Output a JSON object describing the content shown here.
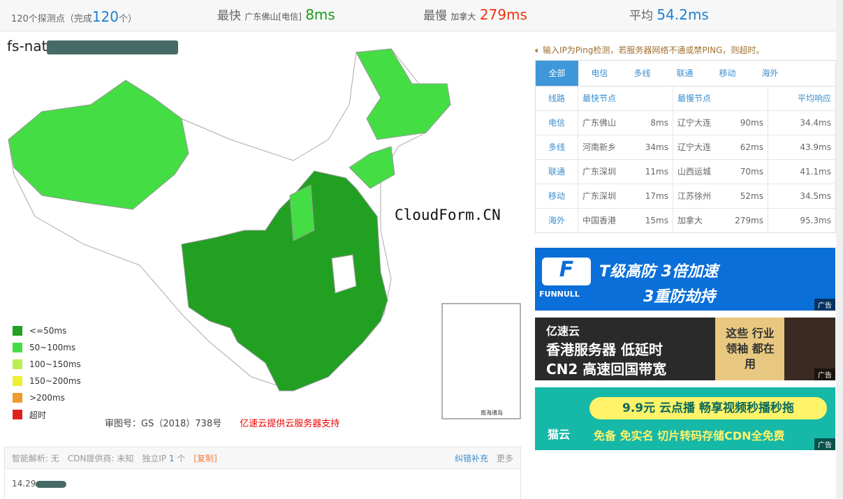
{
  "summary": {
    "probes_prefix": "120个探测点（完成",
    "probes_done": "120",
    "probes_suffix": "个）",
    "fastest_label": "最快",
    "fastest_loc": "广东佛山[电信]",
    "fastest_val": "8ms",
    "slowest_label": "最慢",
    "slowest_loc": "加拿大",
    "slowest_val": "279ms",
    "avg_label": "平均",
    "avg_val": "54.2ms"
  },
  "host": {
    "prefix": "fs-nat"
  },
  "map": {
    "watermark": "CloudForm.CN",
    "approval": "审图号：GS（2018）738号",
    "sponsor": "亿速云提供云服务器支持",
    "inset_label": "南海诸岛",
    "legend": [
      {
        "label": "<=50ms",
        "color": "#22a022"
      },
      {
        "label": "50~100ms",
        "color": "#44dd44"
      },
      {
        "label": "100~150ms",
        "color": "#bbee55"
      },
      {
        "label": "150~200ms",
        "color": "#eeee33"
      },
      {
        "label": ">200ms",
        "color": "#f09a30"
      },
      {
        "label": "超时",
        "color": "#e02020"
      }
    ]
  },
  "info": {
    "smart": "智能解析: 无",
    "cdn": "CDN提供商: 未知",
    "ip_label": "独立IP",
    "ip_count": "1",
    "ip_unit": "个",
    "copy": "[复制]",
    "report": "纠错补充",
    "more": "更多",
    "ip_prefix": "14.29"
  },
  "notice": "输入IP为Ping检测，若服务器网络不通或禁PING，则超时。",
  "table": {
    "tabs": [
      "全部",
      "电信",
      "多线",
      "联通",
      "移动",
      "海外"
    ],
    "headers": [
      "线路",
      "最快节点",
      "最慢节点",
      "平均响应"
    ],
    "rows": [
      {
        "line": "电信",
        "fast": "广东佛山",
        "fast_ms": "8ms",
        "slow": "辽宁大连",
        "slow_ms": "90ms",
        "avg": "34.4ms"
      },
      {
        "line": "多线",
        "fast": "河南新乡",
        "fast_ms": "34ms",
        "slow": "辽宁大连",
        "slow_ms": "62ms",
        "avg": "43.9ms"
      },
      {
        "line": "联通",
        "fast": "广东深圳",
        "fast_ms": "11ms",
        "slow": "山西运城",
        "slow_ms": "70ms",
        "avg": "41.1ms"
      },
      {
        "line": "移动",
        "fast": "广东深圳",
        "fast_ms": "17ms",
        "slow": "江苏徐州",
        "slow_ms": "52ms",
        "avg": "34.5ms"
      },
      {
        "line": "海外",
        "fast": "中国香港",
        "fast_ms": "15ms",
        "slow": "加拿大",
        "slow_ms": "279ms",
        "avg": "95.3ms"
      }
    ]
  },
  "ads": [
    {
      "brand": "FUNNULL",
      "line1": "T级高防  3倍加速",
      "line2": "3重防劫持",
      "tag": "广告"
    },
    {
      "brand": "亿速云",
      "line1": "香港服务器 低延时",
      "line2": "CN2 高速回国带宽",
      "side": "这些 行业领袖 都在用",
      "tag": "广告"
    },
    {
      "brand": "猫云",
      "line1": "9.9元 云点播  畅享视频秒播秒拖",
      "line2": "免备 免实名 切片转码存储CDN全免费",
      "tag": "广告"
    }
  ]
}
